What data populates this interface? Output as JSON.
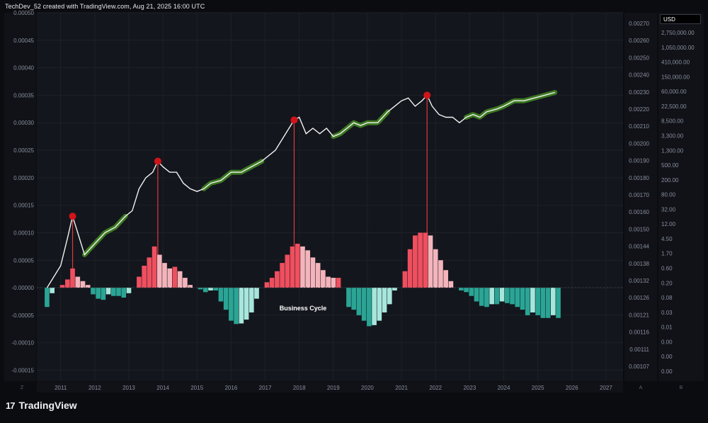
{
  "header": {
    "caption": "TechDev_52 created with TradingView.com, Aug 21, 2025 16:00 UTC",
    "currency": "USD"
  },
  "brand": {
    "logo_glyph": "17",
    "name": "TradingView"
  },
  "scale_buttons": {
    "left": "Z",
    "mid": "A",
    "right": "B"
  },
  "chart_data": {
    "type": "line",
    "xlabel": "",
    "ylabel": "",
    "x_ticks": [
      "2011",
      "2012",
      "2013",
      "2014",
      "2015",
      "2016",
      "2017",
      "2018",
      "2019",
      "2020",
      "2021",
      "2022",
      "2023",
      "2024",
      "2025",
      "2026",
      "2027"
    ],
    "left_axis": {
      "ticks": [
        "0.00050",
        "0.00045",
        "0.00040",
        "0.00035",
        "0.00030",
        "0.00025",
        "0.00020",
        "0.00015",
        "0.00010",
        "0.00005",
        "-0.00000",
        "-0.00005",
        "-0.00010",
        "-0.00015"
      ],
      "range": [
        -0.00017,
        0.0005
      ]
    },
    "mid_axis": {
      "ticks": [
        "0.00270",
        "0.00260",
        "0.00250",
        "0.00240",
        "0.00230",
        "0.00220",
        "0.00210",
        "0.00200",
        "0.00190",
        "0.00180",
        "0.00170",
        "0.00160",
        "0.00150",
        "0.00144",
        "0.00138",
        "0.00132",
        "0.00126",
        "0.00121",
        "0.00116",
        "0.00111",
        "0.00107"
      ]
    },
    "right_axis": {
      "scale": "log",
      "ticks": [
        "2,750,000.00",
        "1,050,000.00",
        "410,000.00",
        "150,000.00",
        "60,000.00",
        "22,500.00",
        "8,500.00",
        "3,300.00",
        "1,300.00",
        "500.00",
        "200.00",
        "80.00",
        "32.00",
        "12.00",
        "4.50",
        "1.70",
        "0.60",
        "0.20",
        "0.08",
        "0.03",
        "0.01",
        "0.00",
        "0.00",
        "0.00"
      ]
    },
    "annotation": "Business Cycle",
    "price_series": {
      "x": [
        2010.6,
        2010.8,
        2011.0,
        2011.2,
        2011.35,
        2011.5,
        2011.7,
        2012.0,
        2012.3,
        2012.6,
        2012.9,
        2013.1,
        2013.3,
        2013.5,
        2013.7,
        2013.85,
        2014.0,
        2014.2,
        2014.4,
        2014.6,
        2014.8,
        2015.0,
        2015.2,
        2015.4,
        2015.7,
        2016.0,
        2016.3,
        2016.6,
        2016.9,
        2017.1,
        2017.3,
        2017.5,
        2017.7,
        2017.85,
        2018.0,
        2018.2,
        2018.4,
        2018.6,
        2018.8,
        2019.0,
        2019.2,
        2019.4,
        2019.6,
        2019.8,
        2020.0,
        2020.3,
        2020.6,
        2020.8,
        2021.0,
        2021.2,
        2021.4,
        2021.6,
        2021.75,
        2021.9,
        2022.1,
        2022.3,
        2022.5,
        2022.7,
        2022.9,
        2023.1,
        2023.3,
        2023.5,
        2023.8,
        2024.0,
        2024.3,
        2024.6,
        2024.9,
        2025.2,
        2025.5
      ],
      "y": [
        0.0,
        2e-05,
        4e-05,
        9e-05,
        0.00013,
        0.0001,
        6e-05,
        8e-05,
        0.0001,
        0.00011,
        0.00013,
        0.00014,
        0.00018,
        0.0002,
        0.00021,
        0.00023,
        0.00022,
        0.00021,
        0.00021,
        0.00019,
        0.00018,
        0.000175,
        0.00018,
        0.00019,
        0.000195,
        0.00021,
        0.00021,
        0.00022,
        0.00023,
        0.00024,
        0.00025,
        0.00027,
        0.00029,
        0.000305,
        0.00031,
        0.00028,
        0.00029,
        0.00028,
        0.00029,
        0.000275,
        0.00028,
        0.00029,
        0.0003,
        0.000295,
        0.0003,
        0.0003,
        0.00032,
        0.00033,
        0.00034,
        0.000345,
        0.00033,
        0.00034,
        0.00035,
        0.00033,
        0.000315,
        0.00031,
        0.00031,
        0.0003,
        0.00031,
        0.000315,
        0.00031,
        0.00032,
        0.000325,
        0.00033,
        0.00034,
        0.00034,
        0.000345,
        0.00035,
        0.000355
      ]
    },
    "accumulation_zones": [
      [
        2011.7,
        2012.9
      ],
      [
        2015.2,
        2016.9
      ],
      [
        2019.0,
        2020.6
      ],
      [
        2022.9,
        2025.5
      ]
    ],
    "cycle_tops": [
      {
        "x": 2011.35,
        "y": 0.00013
      },
      {
        "x": 2013.85,
        "y": 0.00023
      },
      {
        "x": 2017.85,
        "y": 0.000305
      },
      {
        "x": 2021.75,
        "y": 0.00035
      }
    ],
    "histogram": {
      "x": [
        2010.6,
        2010.75,
        2010.9,
        2011.05,
        2011.2,
        2011.35,
        2011.5,
        2011.65,
        2011.8,
        2011.95,
        2012.1,
        2012.25,
        2012.4,
        2012.55,
        2012.7,
        2012.85,
        2013.0,
        2013.15,
        2013.3,
        2013.45,
        2013.6,
        2013.75,
        2013.9,
        2014.05,
        2014.2,
        2014.35,
        2014.5,
        2014.65,
        2014.8,
        2014.95,
        2015.1,
        2015.25,
        2015.4,
        2015.55,
        2015.7,
        2015.85,
        2016.0,
        2016.15,
        2016.3,
        2016.45,
        2016.6,
        2016.75,
        2016.9,
        2017.05,
        2017.2,
        2017.35,
        2017.5,
        2017.65,
        2017.8,
        2017.95,
        2018.1,
        2018.25,
        2018.4,
        2018.55,
        2018.7,
        2018.85,
        2019.0,
        2019.15,
        2019.3,
        2019.45,
        2019.6,
        2019.75,
        2019.9,
        2020.05,
        2020.2,
        2020.35,
        2020.5,
        2020.65,
        2020.8,
        2020.95,
        2021.1,
        2021.25,
        2021.4,
        2021.55,
        2021.7,
        2021.85,
        2022.0,
        2022.15,
        2022.3,
        2022.45,
        2022.6,
        2022.75,
        2022.9,
        2023.05,
        2023.2,
        2023.35,
        2023.5,
        2023.65,
        2023.8,
        2023.95,
        2024.1,
        2024.25,
        2024.4,
        2024.55,
        2024.7,
        2024.85,
        2025.0,
        2025.15,
        2025.3,
        2025.45,
        2025.6
      ],
      "y": [
        -3.5e-05,
        -1e-05,
        0.0,
        5e-06,
        1.5e-05,
        3.5e-05,
        2e-05,
        1.2e-05,
        5e-06,
        -1.2e-05,
        -2e-05,
        -2.2e-05,
        -1.2e-05,
        -1.5e-05,
        -1.5e-05,
        -1.8e-05,
        -1e-05,
        0.0,
        2e-05,
        4e-05,
        5.5e-05,
        7.5e-05,
        6e-05,
        4.5e-05,
        3.5e-05,
        3.8e-05,
        3e-05,
        1.8e-05,
        5e-06,
        0.0,
        -3e-06,
        -8e-06,
        -5e-06,
        -5e-06,
        -2.5e-05,
        -4e-05,
        -6e-05,
        -6.6e-05,
        -6.5e-05,
        -5.8e-05,
        -4.5e-05,
        -2e-05,
        0.0,
        1e-05,
        1.8e-05,
        3e-05,
        4.5e-05,
        6e-05,
        7.5e-05,
        8e-05,
        7.5e-05,
        6.8e-05,
        5.5e-05,
        4.5e-05,
        3.2e-05,
        2e-05,
        1.8e-05,
        1.8e-05,
        0.0,
        -3.5e-05,
        -4e-05,
        -5e-05,
        -6e-05,
        -7e-05,
        -6.8e-05,
        -6e-05,
        -4.5e-05,
        -3e-05,
        -5e-06,
        0.0,
        3e-05,
        7e-05,
        9.5e-05,
        0.0001,
        0.0001,
        9.5e-05,
        7e-05,
        5e-05,
        3.2e-05,
        1.2e-05,
        0.0,
        -5e-06,
        -8e-06,
        -1.5e-05,
        -2.5e-05,
        -3.3e-05,
        -3.5e-05,
        -3e-05,
        -3e-05,
        -2.5e-05,
        -2.8e-05,
        -3e-05,
        -3.5e-05,
        -4e-05,
        -5e-05,
        -4.5e-05,
        -5e-05,
        -5.5e-05,
        -5.5e-05,
        -5e-05,
        -5.5e-05
      ]
    }
  },
  "colors": {
    "background": "#0b0c10",
    "panel": "#14161d",
    "grid": "#1e2129",
    "price_line": "#f2f2f2",
    "accumulation": "#3e7d22",
    "top_marker": "#d1141a",
    "drop_line": "#e03a3a",
    "hist_pos_strong": "#ef4f5f",
    "hist_pos_light": "#f4b4bb",
    "hist_neg_strong": "#2aa595",
    "hist_neg_light": "#a7e6dc",
    "axis_text": "#8a8f9c"
  }
}
